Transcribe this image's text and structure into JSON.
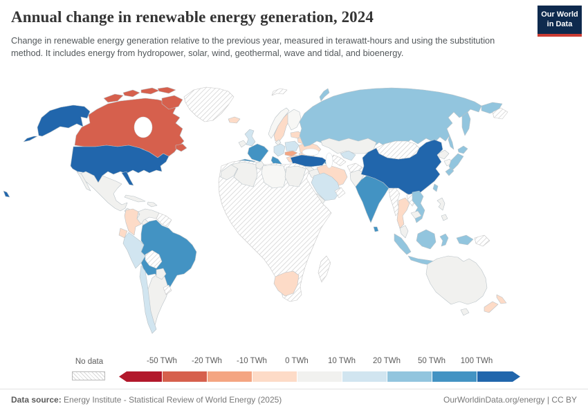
{
  "header": {
    "title": "Annual change in renewable energy generation, 2024",
    "subtitle": "Change in renewable energy generation relative to the previous year, measured in terawatt-hours and using the substitution method. It includes energy from hydropower, solar, wind, geothermal, wave and tidal, and bioenergy.",
    "logo": {
      "line1": "Our World",
      "line2": "in Data"
    }
  },
  "legend": {
    "no_data_label": "No data",
    "ticks": [
      "-50 TWh",
      "-20 TWh",
      "-10 TWh",
      "0 TWh",
      "10 TWh",
      "20 TWh",
      "50 TWh",
      "100 TWh"
    ],
    "colors": [
      "#b2182b",
      "#d6604d",
      "#f4a582",
      "#fddbc7",
      "#f1f1ef",
      "#d1e5f0",
      "#92c5de",
      "#4393c3",
      "#2166ac"
    ]
  },
  "footer": {
    "datasource_label": "Data source:",
    "datasource_text": " Energy Institute - Statistical Review of World Energy (2025)",
    "right_text": "OurWorldinData.org/energy | CC BY"
  },
  "map": {
    "fills": {
      "united-states": "#2166ac",
      "canada": "#d6604d",
      "greenland": "hatch",
      "iceland": "#fddbc7",
      "mexico": "#f1f1ef",
      "central-america": "#f1f1ef",
      "cuba": "#f1f1ef",
      "hispaniola": "#f1f1ef",
      "colombia": "#fddbc7",
      "venezuela": "#f1f1ef",
      "guyanas": "hatch",
      "ecuador": "#fddbc7",
      "peru": "#d1e5f0",
      "brazil": "#4393c3",
      "bolivia": "hatch",
      "paraguay": "#f1f1ef",
      "uruguay": "hatch",
      "chile": "#d1e5f0",
      "argentina": "#f1f1ef",
      "united-kingdom": "#d1e5f0",
      "ireland": "#f1f1ef",
      "norway": "#f7f7f5",
      "sweden": "#fddbc7",
      "finland": "#f7f7f5",
      "baltics": "#fddbc7",
      "denmark": "#f1f1ef",
      "germany": "#d1e5f0",
      "poland": "#d1e5f0",
      "belarus": "#fddbc7",
      "ukraine": "#fddbc7",
      "czech-slovakia": "#f4a582",
      "austria-hungary": "#fddbc7",
      "romania": "#fddbc7",
      "balkans": "#fddbc7",
      "greece": "#f1f1ef",
      "france": "#4393c3",
      "spain": "#4393c3",
      "portugal": "#d1e5f0",
      "italy": "#4393c3",
      "turkey": "#2166ac",
      "russia": "#92c5de",
      "svalbard": "hatch",
      "russia-ne-hatch": "hatch",
      "kazakhstan": "#f1f1ef",
      "uzbekistan": "#d1e5f0",
      "turkmenistan": "hatch",
      "azerbaijan": "#4393c3",
      "iran": "#fddbc7",
      "iraq": "#f1f1ef",
      "syria": "#f1f1ef",
      "saudi-arabia": "#d1e5f0",
      "yemen": "#f1f1ef",
      "oman": "hatch",
      "afghanistan": "hatch",
      "pakistan": "#f1f1ef",
      "india": "#4393c3",
      "sri-lanka": "#4393c3",
      "china": "#2166ac",
      "mongolia": "hatch",
      "north-korea": "#f1f1ef",
      "south-korea": "#f7f7f5",
      "japan": "#92c5de",
      "taiwan": "#92c5de",
      "myanmar": "hatch",
      "laos": "hatch",
      "thailand": "#fddbc7",
      "vietnam": "#92c5de",
      "cambodia": "#f1f1ef",
      "malaysia": "#f1f1ef",
      "philippines": "#f1f1ef",
      "indonesia": "#92c5de",
      "papua-new-guinea": "hatch",
      "australia": "#f1f1ef",
      "new-zealand": "#fddbc7",
      "morocco": "#f1f1ef",
      "algeria": "#f1f1ef",
      "tunisia": "#f1f1ef",
      "libya": "#f7f7f5",
      "egypt": "#f1f1ef",
      "africa-subsaharan": "hatch",
      "south-africa": "#fddbc7",
      "madagascar": "hatch"
    }
  },
  "chart_data": {
    "type": "heatmap",
    "subtype": "choropleth-world-map",
    "title": "Annual change in renewable energy generation, 2024",
    "unit": "TWh",
    "legend_position": "bottom",
    "bins": [
      "< -50",
      "-50 to -20",
      "-20 to -10",
      "-10 to 0",
      "0 to 10",
      "10 to 20",
      "20 to 50",
      "50 to 100",
      "> 100",
      "No data"
    ],
    "bin_colors": [
      "#b2182b",
      "#d6604d",
      "#f4a582",
      "#fddbc7",
      "#f1f1ef",
      "#d1e5f0",
      "#92c5de",
      "#4393c3",
      "#2166ac",
      "hatched"
    ],
    "values": {
      "United States": "> 100",
      "Canada": "-50 to -20",
      "Greenland": "No data",
      "Iceland": "-10 to 0",
      "Mexico": "0 to 10",
      "Central America": "0 to 10",
      "Cuba": "0 to 10",
      "Colombia": "-10 to 0",
      "Venezuela": "0 to 10",
      "Guyana/Suriname": "No data",
      "Ecuador": "-10 to 0",
      "Peru": "10 to 20",
      "Brazil": "50 to 100",
      "Bolivia": "No data",
      "Paraguay": "0 to 10",
      "Uruguay": "No data",
      "Chile": "10 to 20",
      "Argentina": "0 to 10",
      "United Kingdom": "10 to 20",
      "Ireland": "0 to 10",
      "Norway": "0 to 10",
      "Sweden": "-10 to 0",
      "Finland": "0 to 10",
      "Germany": "10 to 20",
      "Poland": "10 to 20",
      "Belarus": "-10 to 0",
      "Ukraine": "-10 to 0",
      "Czechia/Slovakia": "-20 to -10",
      "Austria/Hungary": "-10 to 0",
      "Romania": "-10 to 0",
      "Greece": "0 to 10",
      "France": "50 to 100",
      "Spain": "50 to 100",
      "Portugal": "10 to 20",
      "Italy": "50 to 100",
      "Turkey": "> 100",
      "Russia": "20 to 50",
      "Kazakhstan": "0 to 10",
      "Uzbekistan": "10 to 20",
      "Turkmenistan": "No data",
      "Azerbaijan": "50 to 100",
      "Iran": "-10 to 0",
      "Iraq": "0 to 10",
      "Syria": "0 to 10",
      "Saudi Arabia": "10 to 20",
      "Yemen": "0 to 10",
      "Oman": "No data",
      "Afghanistan": "No data",
      "Pakistan": "0 to 10",
      "India": "50 to 100",
      "Sri Lanka": "50 to 100",
      "China": "> 100",
      "Mongolia": "No data",
      "North Korea": "0 to 10",
      "South Korea": "0 to 10",
      "Japan": "20 to 50",
      "Taiwan": "20 to 50",
      "Myanmar": "No data",
      "Laos": "No data",
      "Thailand": "-10 to 0",
      "Vietnam": "20 to 50",
      "Cambodia": "0 to 10",
      "Malaysia": "0 to 10",
      "Philippines": "0 to 10",
      "Indonesia": "20 to 50",
      "Papua New Guinea": "No data",
      "Australia": "0 to 10",
      "New Zealand": "-10 to 0",
      "Morocco": "0 to 10",
      "Algeria": "0 to 10",
      "Tunisia": "0 to 10",
      "Libya": "0 to 10",
      "Egypt": "0 to 10",
      "Sub-Saharan Africa (most countries)": "No data",
      "South Africa": "-10 to 0",
      "Madagascar": "No data"
    }
  }
}
